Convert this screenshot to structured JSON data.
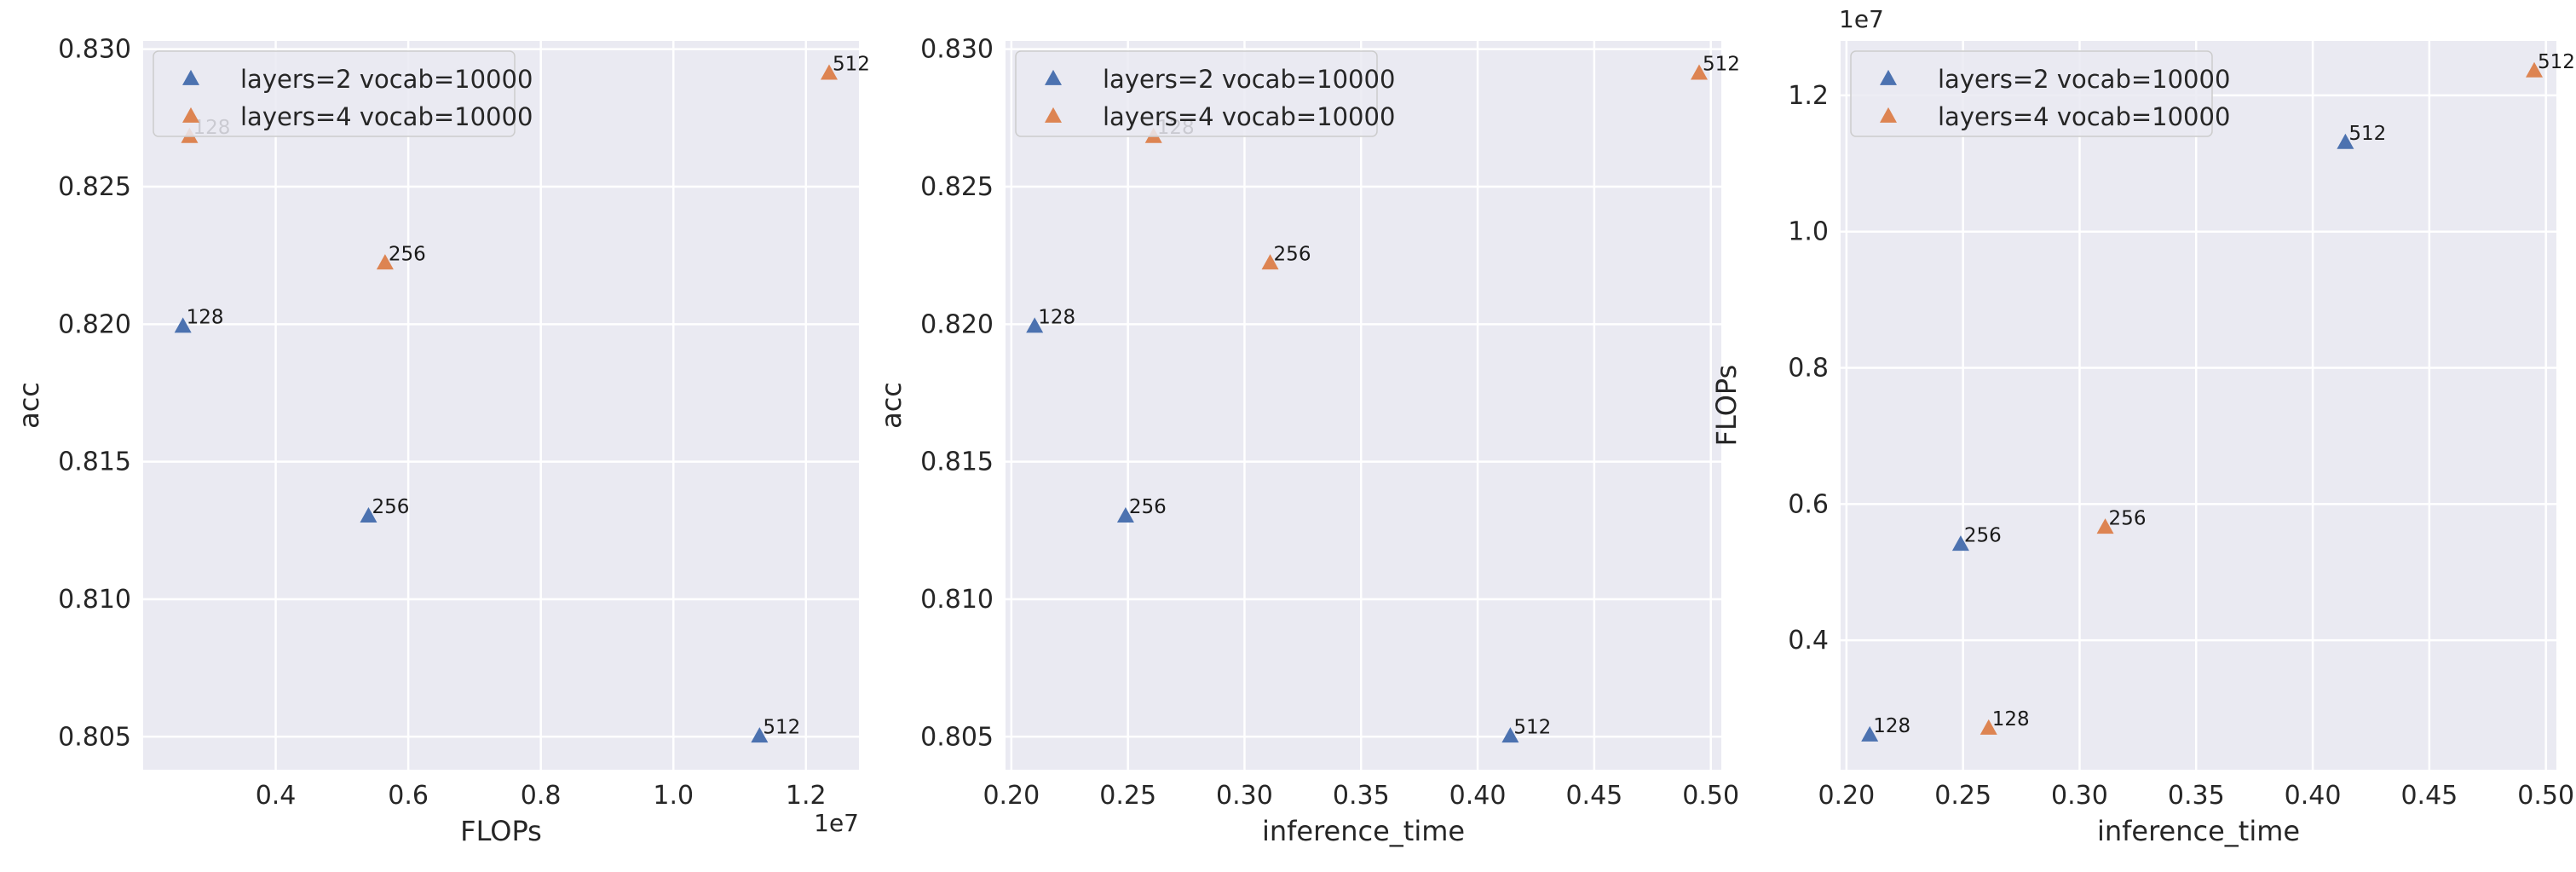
{
  "colors": {
    "panel_bg": "#eaeaf2",
    "grid": "#ffffff",
    "series_blue": "#4c72b0",
    "series_orange": "#dd8452",
    "legend_bg": "#eaeaf2",
    "legend_border": "#cccccc"
  },
  "chart_data": [
    {
      "type": "scatter",
      "xlabel": "FLOPs",
      "ylabel": "acc",
      "xlim": [
        2000000,
        12800000
      ],
      "ylim": [
        0.8038,
        0.8303
      ],
      "xticks": [
        4000000,
        6000000,
        8000000,
        10000000,
        12000000
      ],
      "xtick_labels": [
        "0.4",
        "0.6",
        "0.8",
        "1.0",
        "1.2"
      ],
      "yticks": [
        0.805,
        0.81,
        0.815,
        0.82,
        0.825,
        0.83
      ],
      "ytick_labels": [
        "0.805",
        "0.810",
        "0.815",
        "0.820",
        "0.825",
        "0.830"
      ],
      "x_offset_label": "1e7",
      "y_offset_label": "",
      "legend": [
        "layers=2 vocab=10000",
        "layers=4 vocab=10000"
      ],
      "series": [
        {
          "name": "layers=2 vocab=10000",
          "color": "#4c72b0",
          "points": [
            {
              "x": 2600000,
              "y": 0.8199,
              "label": "128"
            },
            {
              "x": 5400000,
              "y": 0.813,
              "label": "256"
            },
            {
              "x": 11300000,
              "y": 0.805,
              "label": "512"
            }
          ]
        },
        {
          "name": "layers=4 vocab=10000",
          "color": "#dd8452",
          "points": [
            {
              "x": 2700000,
              "y": 0.8268,
              "label": "128"
            },
            {
              "x": 5650000,
              "y": 0.8222,
              "label": "256"
            },
            {
              "x": 12350000,
              "y": 0.8291,
              "label": "512"
            }
          ]
        }
      ]
    },
    {
      "type": "scatter",
      "xlabel": "inference_time",
      "ylabel": "acc",
      "xlim": [
        0.1975,
        0.5045
      ],
      "ylim": [
        0.8038,
        0.8303
      ],
      "xticks": [
        0.2,
        0.25,
        0.3,
        0.35,
        0.4,
        0.45,
        0.5
      ],
      "xtick_labels": [
        "0.20",
        "0.25",
        "0.30",
        "0.35",
        "0.40",
        "0.45",
        "0.50"
      ],
      "yticks": [
        0.805,
        0.81,
        0.815,
        0.82,
        0.825,
        0.83
      ],
      "ytick_labels": [
        "0.805",
        "0.810",
        "0.815",
        "0.820",
        "0.825",
        "0.830"
      ],
      "x_offset_label": "",
      "y_offset_label": "",
      "legend": [
        "layers=2 vocab=10000",
        "layers=4 vocab=10000"
      ],
      "series": [
        {
          "name": "layers=2 vocab=10000",
          "color": "#4c72b0",
          "points": [
            {
              "x": 0.21,
              "y": 0.8199,
              "label": "128"
            },
            {
              "x": 0.249,
              "y": 0.813,
              "label": "256"
            },
            {
              "x": 0.414,
              "y": 0.805,
              "label": "512"
            }
          ]
        },
        {
          "name": "layers=4 vocab=10000",
          "color": "#dd8452",
          "points": [
            {
              "x": 0.261,
              "y": 0.8268,
              "label": "128"
            },
            {
              "x": 0.311,
              "y": 0.8222,
              "label": "256"
            },
            {
              "x": 0.495,
              "y": 0.8291,
              "label": "512"
            }
          ]
        }
      ]
    },
    {
      "type": "scatter",
      "xlabel": "inference_time",
      "ylabel": "FLOPs",
      "xlim": [
        0.1975,
        0.5045
      ],
      "ylim": [
        2100000,
        12800000
      ],
      "xticks": [
        0.2,
        0.25,
        0.3,
        0.35,
        0.4,
        0.45,
        0.5
      ],
      "xtick_labels": [
        "0.20",
        "0.25",
        "0.30",
        "0.35",
        "0.40",
        "0.45",
        "0.50"
      ],
      "yticks": [
        4000000,
        6000000,
        8000000,
        10000000,
        12000000
      ],
      "ytick_labels": [
        "0.4",
        "0.6",
        "0.8",
        "1.0",
        "1.2"
      ],
      "x_offset_label": "",
      "y_offset_label": "1e7",
      "legend": [
        "layers=2 vocab=10000",
        "layers=4 vocab=10000"
      ],
      "series": [
        {
          "name": "layers=2 vocab=10000",
          "color": "#4c72b0",
          "points": [
            {
              "x": 0.21,
              "y": 2600000,
              "label": "128"
            },
            {
              "x": 0.249,
              "y": 5400000,
              "label": "256"
            },
            {
              "x": 0.414,
              "y": 11300000,
              "label": "512"
            }
          ]
        },
        {
          "name": "layers=4 vocab=10000",
          "color": "#dd8452",
          "points": [
            {
              "x": 0.261,
              "y": 2700000,
              "label": "128"
            },
            {
              "x": 0.311,
              "y": 5650000,
              "label": "256"
            },
            {
              "x": 0.495,
              "y": 12350000,
              "label": "512"
            }
          ]
        }
      ]
    }
  ]
}
